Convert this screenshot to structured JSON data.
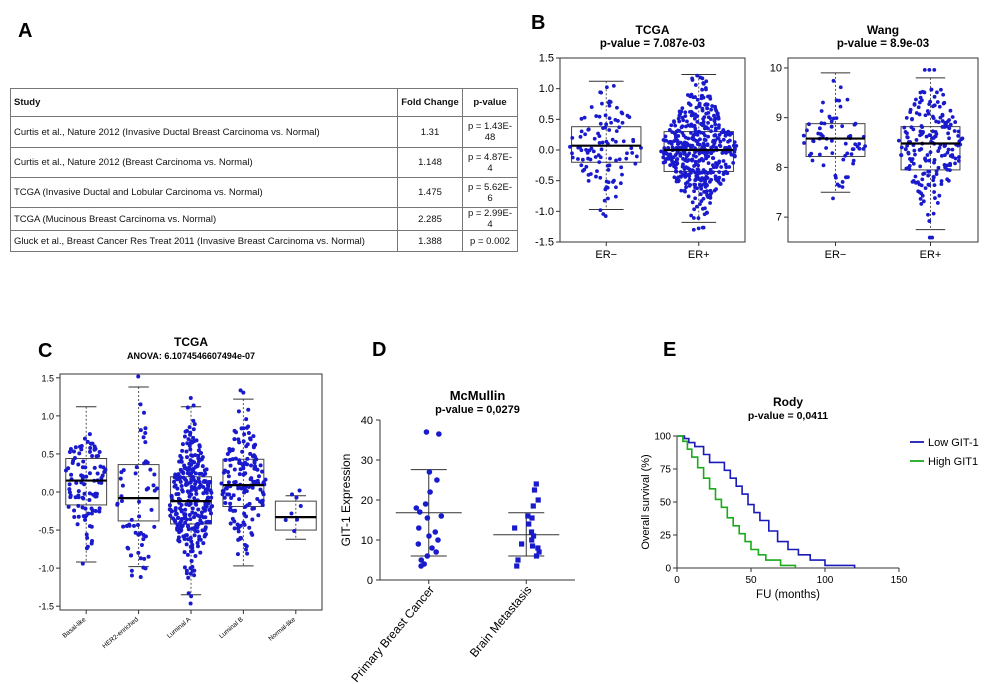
{
  "panel_labels": {
    "a": "A",
    "b": "B",
    "c": "C",
    "d": "D",
    "e": "E"
  },
  "study_table": {
    "headers": [
      "Study",
      "Fold Change",
      "p-value"
    ],
    "rows": [
      [
        "Curtis et al., Nature 2012 (Invasive Ductal Breast Carcinoma vs. Normal)",
        "1.31",
        "p = 1.43E-48"
      ],
      [
        "Curtis et al., Nature 2012 (Breast Carcinoma vs. Normal)",
        "1.148",
        "p = 4.87E-4"
      ],
      [
        "TCGA (Invasive Ductal and Lobular Carcinoma vs. Normal)",
        "1.475",
        "p = 5.62E-6"
      ],
      [
        "TCGA (Mucinous Breast Carcinoma vs. Normal)",
        "2.285",
        "p = 2.99E-4"
      ],
      [
        "Gluck et al., Breast Cancer Res Treat 2011 (Invasive Breast Carcinoma vs. Normal)",
        "1.388",
        "p = 0.002"
      ]
    ]
  },
  "chart_data": [
    {
      "id": "tcga_er",
      "type": "box",
      "title": "TCGA",
      "subtitle": "p-value = 7.087e-03",
      "categories": [
        "ER−",
        "ER+"
      ],
      "ylim": [
        -1.5,
        1.5
      ],
      "yticks": [
        "-1.5",
        "-1.0",
        "-0.5",
        "0.0",
        "0.5",
        "1.0",
        "1.5"
      ],
      "boxes": [
        {
          "min": -0.97,
          "q1": -0.2,
          "median": 0.07,
          "q3": 0.38,
          "max": 1.12,
          "n": 110
        },
        {
          "min": -1.18,
          "q1": -0.35,
          "median": 0.0,
          "q3": 0.3,
          "max": 1.23,
          "n": 480
        }
      ]
    },
    {
      "id": "wang_er",
      "type": "box",
      "title": "Wang",
      "subtitle": "p-value = 8.9e-03",
      "categories": [
        "ER−",
        "ER+"
      ],
      "ylim": [
        6.5,
        10.2
      ],
      "yticks": [
        "7",
        "8",
        "9",
        "10"
      ],
      "boxes": [
        {
          "min": 7.5,
          "q1": 8.22,
          "median": 8.58,
          "q3": 8.88,
          "max": 9.9,
          "n": 70
        },
        {
          "min": 6.75,
          "q1": 7.95,
          "median": 8.48,
          "q3": 8.82,
          "max": 9.8,
          "n": 200
        }
      ]
    },
    {
      "id": "tcga_subtypes",
      "type": "box",
      "title": "TCGA",
      "subtitle": "ANOVA: 6.1074546607494e-07",
      "categories": [
        "Basal-like",
        "HER2-enriched",
        "Luminal A",
        "Luminal B",
        "Normal-like"
      ],
      "ylim": [
        -1.55,
        1.55
      ],
      "yticks": [
        "-1.5",
        "-1.0",
        "-0.5",
        "0.0",
        "0.5",
        "1.0",
        "1.5"
      ],
      "boxes": [
        {
          "min": -0.92,
          "q1": -0.17,
          "median": 0.15,
          "q3": 0.44,
          "max": 1.12,
          "n": 100
        },
        {
          "min": -0.98,
          "q1": -0.38,
          "median": -0.08,
          "q3": 0.36,
          "max": 1.38,
          "n": 60
        },
        {
          "min": -1.35,
          "q1": -0.42,
          "median": -0.12,
          "q3": 0.2,
          "max": 1.12,
          "n": 300
        },
        {
          "min": -0.97,
          "q1": -0.19,
          "median": 0.09,
          "q3": 0.43,
          "max": 1.22,
          "n": 160
        },
        {
          "min": -0.62,
          "q1": -0.5,
          "median": -0.33,
          "q3": -0.12,
          "max": -0.05,
          "n": 8
        }
      ]
    },
    {
      "id": "mcmullin",
      "type": "scatter",
      "title": "McMullin",
      "subtitle": "p-value = 0,0279",
      "ylabel": "GIT-1 Expression",
      "categories": [
        "Primary Breast Cancer",
        "Brain Metastasis"
      ],
      "ylim": [
        0,
        40
      ],
      "yticks": [
        "0",
        "10",
        "20",
        "30",
        "40"
      ],
      "groups": [
        {
          "mean": 16.8,
          "sd_low": 6.0,
          "sd_high": 27.6,
          "values": [
            37,
            36.5,
            27,
            25,
            22,
            19,
            18,
            17,
            16,
            15.5,
            13,
            12,
            11,
            10,
            9,
            8,
            7,
            6,
            5,
            4,
            3.5
          ]
        },
        {
          "mean": 11.3,
          "sd_low": 6.0,
          "sd_high": 16.8,
          "values": [
            24,
            22.5,
            20,
            18.5,
            16,
            15.5,
            14,
            13,
            12,
            11,
            10,
            9,
            8.5,
            8,
            7,
            6,
            5,
            3.5
          ]
        }
      ]
    },
    {
      "id": "rody",
      "type": "line",
      "title": "Rody",
      "subtitle": "p-value = 0,0411",
      "xlabel": "FU (months)",
      "ylabel": "Overall survival (%)",
      "xlim": [
        0,
        150
      ],
      "ylim": [
        0,
        100
      ],
      "xticks": [
        "0",
        "50",
        "100",
        "150"
      ],
      "yticks": [
        "0",
        "25",
        "50",
        "75",
        "100"
      ],
      "legend_position": "right",
      "series": [
        {
          "name": "Low GIT-1",
          "color": "#1a1ab8",
          "x": [
            0,
            5,
            5,
            8,
            8,
            12,
            12,
            18,
            18,
            22,
            22,
            28,
            28,
            32,
            32,
            36,
            36,
            40,
            40,
            44,
            44,
            48,
            48,
            52,
            52,
            56,
            56,
            62,
            62,
            68,
            68,
            75,
            75,
            82,
            82,
            90,
            90,
            100,
            100,
            120,
            120
          ],
          "y": [
            100,
            100,
            98,
            98,
            95,
            95,
            92,
            92,
            86,
            86,
            80,
            80,
            80,
            80,
            74,
            74,
            68,
            68,
            62,
            62,
            56,
            56,
            48,
            48,
            42,
            42,
            36,
            36,
            28,
            28,
            20,
            20,
            14,
            14,
            10,
            10,
            6,
            6,
            2,
            2,
            0
          ]
        },
        {
          "name": "High GIT1",
          "color": "#1aaa1a",
          "x": [
            0,
            4,
            4,
            7,
            7,
            10,
            10,
            14,
            14,
            18,
            18,
            22,
            22,
            26,
            26,
            30,
            30,
            34,
            34,
            38,
            38,
            42,
            42,
            46,
            46,
            50,
            50,
            55,
            55,
            60,
            60,
            70,
            70,
            80,
            80
          ],
          "y": [
            100,
            100,
            96,
            96,
            90,
            90,
            84,
            84,
            76,
            76,
            68,
            68,
            60,
            60,
            52,
            52,
            46,
            46,
            38,
            38,
            32,
            32,
            26,
            26,
            20,
            20,
            14,
            14,
            10,
            10,
            6,
            6,
            2,
            2,
            0
          ]
        }
      ]
    }
  ]
}
